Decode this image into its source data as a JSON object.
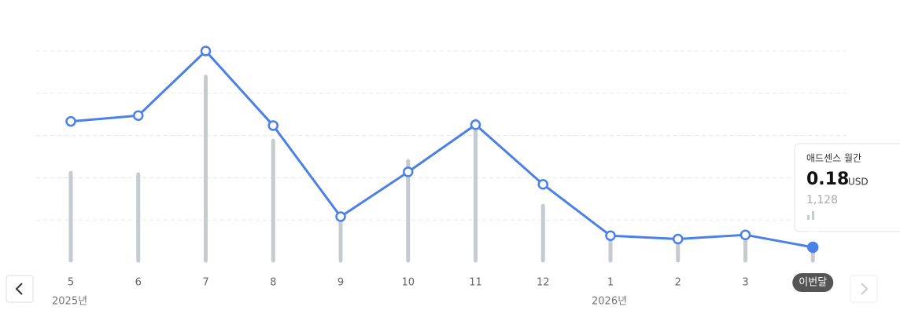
{
  "chart_data": {
    "type": "line-bar",
    "categories": [
      "5",
      "6",
      "7",
      "8",
      "9",
      "10",
      "11",
      "12",
      "1",
      "2",
      "3",
      "이번달"
    ],
    "x_sublabels": [
      "2025년",
      null,
      null,
      null,
      null,
      null,
      null,
      null,
      "2026년",
      null,
      null,
      null
    ],
    "series": [
      {
        "name": "애드센스 월간",
        "type": "line",
        "color": "#4a80e8",
        "unit": "USD",
        "values": [
          1.7,
          1.77,
          2.55,
          1.65,
          0.55,
          1.09,
          1.66,
          0.94,
          0.32,
          0.28,
          0.33,
          0.18
        ]
      },
      {
        "type": "bar",
        "axis": "y2",
        "color": "#c6cad1",
        "values": [
          8040,
          7900,
          16700,
          10930,
          3530,
          9090,
          12760,
          5080,
          2040,
          1690,
          2040,
          1128
        ],
        "value_labels": [
          null,
          null,
          null,
          null,
          null,
          null,
          null,
          null,
          null,
          null,
          null,
          "1,128"
        ]
      }
    ],
    "ylim": [
      0,
      2.55
    ],
    "y2lim": [
      0,
      19000
    ],
    "grid": true
  }
}
